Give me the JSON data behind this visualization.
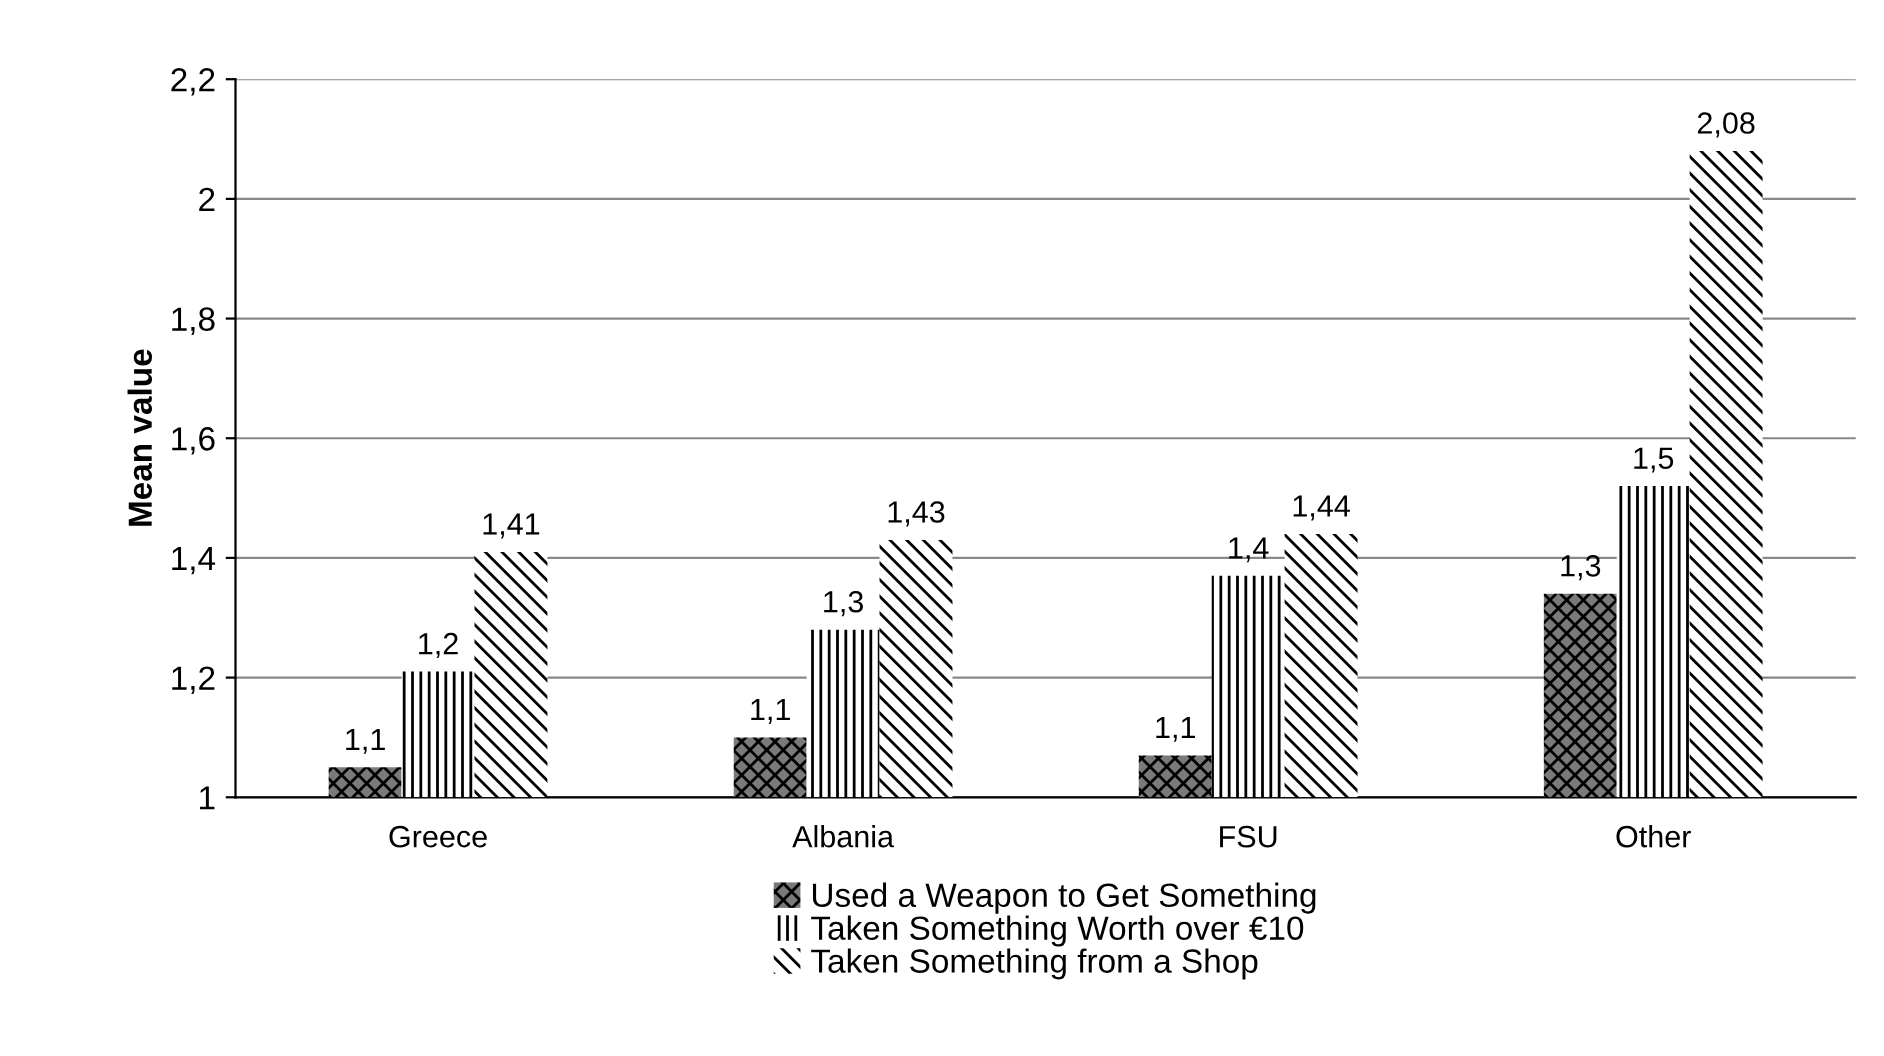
{
  "chart_data": {
    "type": "bar",
    "ylabel": "Mean value",
    "categories": [
      "Greece",
      "Albania",
      "FSU",
      "Other"
    ],
    "series": [
      {
        "name": "Used a Weapon to Get Something",
        "color": "#7a7a7a",
        "values": [
          1.05,
          1.1,
          1.07,
          1.34
        ],
        "value_labels": [
          "1,1",
          "1,1",
          "1,1",
          "1,3"
        ]
      },
      {
        "name": "Taken Something Worth over €10",
        "color": "#ffffff",
        "values": [
          1.21,
          1.28,
          1.37,
          1.52
        ],
        "value_labels": [
          "1,2",
          "1,3",
          "1,4",
          "1,5"
        ]
      },
      {
        "name": "Taken Something from a Shop",
        "color": "#ffffff",
        "values": [
          1.41,
          1.43,
          1.44,
          2.08
        ],
        "value_labels": [
          "1,41",
          "1,43",
          "1,44",
          "2,08"
        ]
      }
    ],
    "ylim": [
      1,
      2.2
    ],
    "yticks": [
      1,
      {
        "value": 1.2,
        "label": "1,2"
      },
      {
        "value": 1.4,
        "label": "1,4"
      },
      {
        "value": 1.6,
        "label": "1,6"
      },
      {
        "value": 1.8,
        "label": "1,8"
      },
      2,
      {
        "value": 2.2,
        "label": "2,2"
      }
    ],
    "grid": "y",
    "legend": "bottom"
  }
}
